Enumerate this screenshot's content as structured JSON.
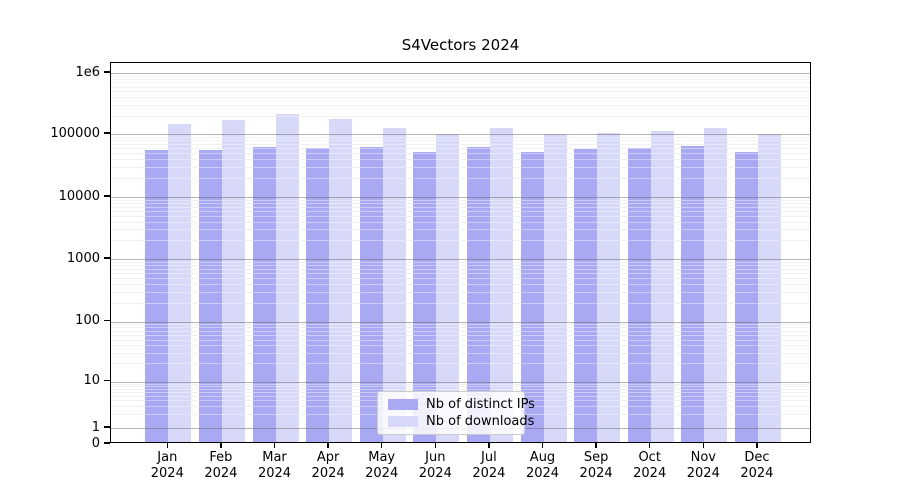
{
  "title": "S4Vectors 2024",
  "chart_data": {
    "type": "bar",
    "title": "S4Vectors 2024",
    "categories": [
      "Jan 2024",
      "Feb 2024",
      "Mar 2024",
      "Apr 2024",
      "May 2024",
      "Jun 2024",
      "Jul 2024",
      "Aug 2024",
      "Sep 2024",
      "Oct 2024",
      "Nov 2024",
      "Dec 2024"
    ],
    "series": [
      {
        "name": "Nb of distinct IPs",
        "color": "#a9a9f3",
        "values": [
          52000,
          52000,
          58000,
          56000,
          58000,
          48000,
          58000,
          48000,
          53000,
          55000,
          59000,
          49000
        ]
      },
      {
        "name": "Nb of downloads",
        "color": "#d8d8f8",
        "values": [
          135000,
          156000,
          195000,
          164000,
          115000,
          94000,
          115000,
          93000,
          97000,
          106000,
          116000,
          94000
        ]
      }
    ],
    "y_scale": "symlog",
    "y_ticks": [
      1000000,
      100000,
      10000,
      1000,
      100,
      10,
      1,
      0
    ],
    "y_tick_labels": [
      "1e6",
      "100000",
      "10000",
      "1000",
      "100",
      "10",
      "1",
      "0"
    ],
    "ylim": [
      0,
      1500000
    ],
    "grid": true,
    "legend_position": "lower center",
    "legend_entries": [
      "Nb of distinct IPs",
      "Nb of downloads"
    ]
  }
}
